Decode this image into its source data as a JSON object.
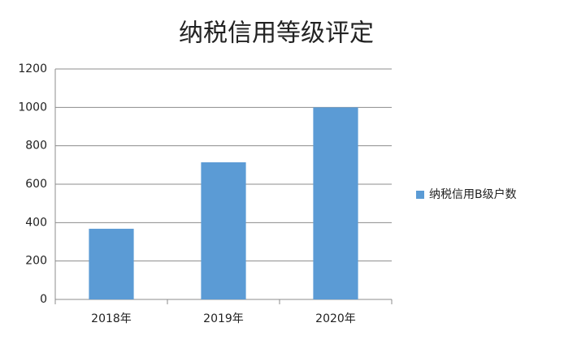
{
  "chart_data": {
    "type": "bar",
    "title": "纳税信用等级评定",
    "categories": [
      "2018年",
      "2019年",
      "2020年"
    ],
    "series": [
      {
        "name": "纳税信用B级户数",
        "color": "#5b9bd5",
        "values": [
          368,
          714,
          1000
        ]
      }
    ],
    "ylim": [
      0,
      1200
    ],
    "yticks": [
      0,
      200,
      400,
      600,
      800,
      1000,
      1200
    ],
    "grid": true,
    "legend": "right"
  }
}
